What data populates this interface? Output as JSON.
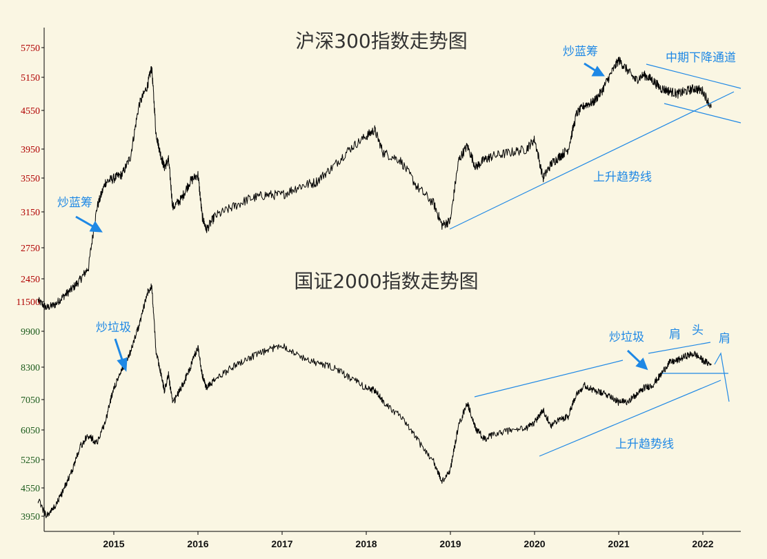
{
  "chart_data": [
    {
      "type": "line",
      "title": "沪深300指数走势图",
      "xlabel": "",
      "ylabel": "",
      "x_ticks": [
        "2015",
        "2016",
        "2017",
        "2018",
        "2019",
        "2020",
        "2021",
        "2022"
      ],
      "y_ticks": [
        2450,
        2750,
        3150,
        3550,
        3950,
        4550,
        5150,
        5750
      ],
      "y_tick_color": "#B00000",
      "series_color": "#000000",
      "series": [
        {
          "x": [
            2014.1,
            2014.2,
            2014.3,
            2014.4,
            2014.5,
            2014.6,
            2014.7,
            2014.8,
            2014.9,
            2015.0,
            2015.1,
            2015.2,
            2015.3,
            2015.4,
            2015.45,
            2015.5,
            2015.55,
            2015.6,
            2015.65,
            2015.7,
            2015.8,
            2015.9,
            2016.0,
            2016.05,
            2016.1,
            2016.2,
            2016.4,
            2016.6,
            2016.8,
            2017.0,
            2017.2,
            2017.4,
            2017.6,
            2017.8,
            2018.0,
            2018.1,
            2018.2,
            2018.4,
            2018.6,
            2018.8,
            2018.9,
            2019.0,
            2019.1,
            2019.2,
            2019.3,
            2019.4,
            2019.5,
            2019.7,
            2019.9,
            2020.0,
            2020.1,
            2020.2,
            2020.3,
            2020.4,
            2020.5,
            2020.6,
            2020.7,
            2020.8,
            2020.9,
            2021.0,
            2021.1,
            2021.2,
            2021.3,
            2021.4,
            2021.5,
            2021.6,
            2021.7,
            2021.8,
            2021.9,
            2022.0,
            2022.1
          ],
          "values": [
            2240,
            2170,
            2200,
            2280,
            2350,
            2440,
            2560,
            3200,
            3500,
            3550,
            3600,
            3850,
            4650,
            5000,
            5350,
            4200,
            3900,
            3700,
            3800,
            3200,
            3300,
            3500,
            3600,
            3100,
            2950,
            3100,
            3200,
            3300,
            3350,
            3350,
            3450,
            3500,
            3700,
            3950,
            4150,
            4250,
            3900,
            3800,
            3450,
            3250,
            3000,
            3050,
            3800,
            4000,
            3700,
            3800,
            3850,
            3900,
            3950,
            4100,
            3550,
            3750,
            3850,
            3950,
            4500,
            4650,
            4700,
            4900,
            5200,
            5500,
            5300,
            5100,
            5200,
            5100,
            4950,
            4900,
            4850,
            4900,
            4950,
            4900,
            4600
          ]
        }
      ],
      "annotations": [
        {
          "text": "炒蓝筹"
        },
        {
          "text": "炒蓝筹"
        },
        {
          "text": "中期下降通道"
        },
        {
          "text": "上升趋势线"
        }
      ]
    },
    {
      "type": "line",
      "title": "国证2000指数走势图",
      "xlabel": "",
      "ylabel": "",
      "x_ticks": [
        "2015",
        "2016",
        "2017",
        "2018",
        "2019",
        "2020",
        "2021",
        "2022"
      ],
      "y_ticks": [
        3950,
        4550,
        5250,
        6050,
        7050,
        8300,
        9900,
        11500
      ],
      "y_tick_color": "#1A5A1A",
      "top_tick_color": "#B00000",
      "series_color": "#000000",
      "series": [
        {
          "x": [
            2014.1,
            2014.2,
            2014.3,
            2014.4,
            2014.5,
            2014.6,
            2014.7,
            2014.8,
            2014.9,
            2015.0,
            2015.1,
            2015.2,
            2015.3,
            2015.4,
            2015.45,
            2015.5,
            2015.55,
            2015.6,
            2015.65,
            2015.7,
            2015.8,
            2015.9,
            2016.0,
            2016.05,
            2016.1,
            2016.2,
            2016.4,
            2016.6,
            2016.8,
            2017.0,
            2017.2,
            2017.4,
            2017.6,
            2017.8,
            2018.0,
            2018.1,
            2018.2,
            2018.4,
            2018.6,
            2018.8,
            2018.9,
            2019.0,
            2019.1,
            2019.2,
            2019.3,
            2019.4,
            2019.5,
            2019.7,
            2019.9,
            2020.0,
            2020.1,
            2020.2,
            2020.3,
            2020.4,
            2020.5,
            2020.6,
            2020.7,
            2020.8,
            2020.9,
            2021.0,
            2021.1,
            2021.2,
            2021.3,
            2021.4,
            2021.5,
            2021.6,
            2021.7,
            2021.8,
            2021.9,
            2022.0,
            2022.1
          ],
          "values": [
            4300,
            3950,
            4150,
            4500,
            4950,
            5600,
            5900,
            5700,
            6300,
            7500,
            8200,
            9000,
            10200,
            12000,
            12400,
            9000,
            8200,
            7400,
            8000,
            6900,
            7500,
            8200,
            9200,
            8000,
            7500,
            7800,
            8300,
            8700,
            9000,
            9300,
            8800,
            8500,
            8300,
            7900,
            7500,
            7400,
            7000,
            6500,
            5800,
            5200,
            4700,
            5000,
            6200,
            6950,
            6100,
            5800,
            5900,
            6050,
            6100,
            6300,
            6700,
            6200,
            6400,
            6500,
            7300,
            7600,
            7400,
            7300,
            7200,
            6950,
            7000,
            7200,
            7500,
            7600,
            8000,
            8500,
            8600,
            8800,
            8900,
            8600,
            8400
          ]
        }
      ],
      "annotations": [
        {
          "text": "炒垃圾"
        },
        {
          "text": "炒垃圾"
        },
        {
          "text": "肩"
        },
        {
          "text": "头"
        },
        {
          "text": "肩"
        },
        {
          "text": "上升趋势线"
        }
      ]
    }
  ]
}
